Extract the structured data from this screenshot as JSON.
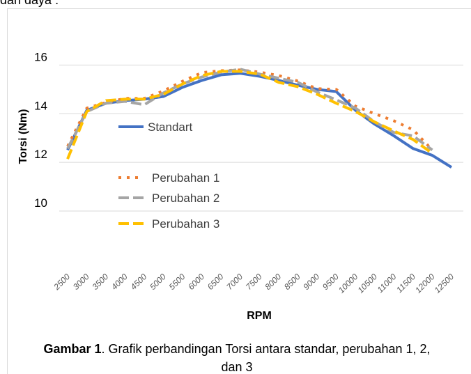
{
  "page_text": "dan daya :",
  "chart_data": {
    "type": "line",
    "x_label": "RPM",
    "y_label": "Torsi (Nm)",
    "categories": [
      "2500",
      "3000",
      "3500",
      "4000",
      "4500",
      "5000",
      "5500",
      "6000",
      "6500",
      "7000",
      "7500",
      "8000",
      "8500",
      "9000",
      "9500",
      "10000",
      "10500",
      "11000",
      "11500",
      "12000",
      "12500"
    ],
    "series": [
      {
        "name": "Standart",
        "color": "#4472c4",
        "line_style": "solid",
        "values": [
          12.51,
          14.14,
          14.43,
          14.54,
          14.6,
          14.71,
          15.09,
          15.37,
          15.6,
          15.66,
          15.54,
          15.37,
          15.17,
          15.0,
          14.91,
          14.14,
          13.57,
          13.09,
          12.57,
          12.29,
          11.8
        ]
      },
      {
        "name": "Perubahan 1",
        "color": "#ed7d31",
        "line_style": "dotted",
        "values": [
          12.66,
          14.23,
          14.46,
          14.63,
          14.63,
          14.94,
          15.34,
          15.69,
          15.77,
          15.8,
          15.71,
          15.57,
          15.34,
          15.03,
          15.0,
          14.31,
          14.0,
          13.71,
          13.34,
          12.51,
          null
        ]
      },
      {
        "name": "Perubahan 2",
        "color": "#a5a5a5",
        "line_style": "dashed",
        "values": [
          12.57,
          14.09,
          14.43,
          14.51,
          14.37,
          14.86,
          15.23,
          15.51,
          15.71,
          15.83,
          15.63,
          15.46,
          15.29,
          14.89,
          14.57,
          14.23,
          13.66,
          13.23,
          13.09,
          12.51,
          null
        ]
      },
      {
        "name": "Perubahan 3",
        "color": "#ffc000",
        "line_style": "dashed",
        "values": [
          12.14,
          14.09,
          14.54,
          14.6,
          14.6,
          14.8,
          15.23,
          15.57,
          15.74,
          15.74,
          15.63,
          15.29,
          15.11,
          14.8,
          14.43,
          14.09,
          13.66,
          13.29,
          12.94,
          12.37,
          null
        ]
      }
    ],
    "ylim": [
      9,
      17.1
    ],
    "yticks": [
      10,
      12,
      14,
      16
    ],
    "grid": true,
    "legend": "inside"
  },
  "caption": {
    "label": "Gambar 1",
    "text": ". Grafik perbandingan Torsi antara standar, perubahan 1, 2, dan 3"
  }
}
